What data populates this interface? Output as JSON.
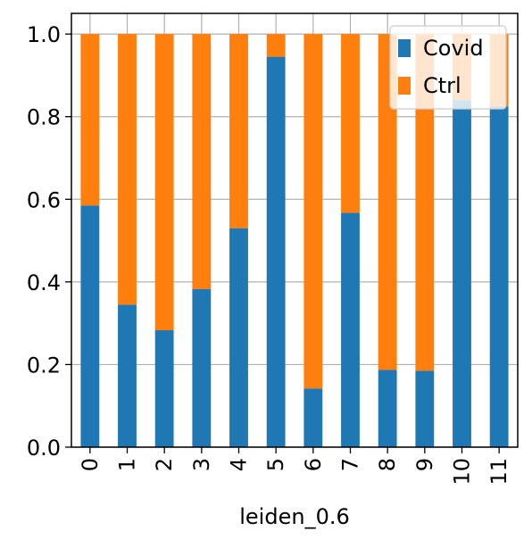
{
  "chart_data": {
    "type": "bar",
    "stacked": true,
    "categories": [
      "0",
      "1",
      "2",
      "3",
      "4",
      "5",
      "6",
      "7",
      "8",
      "9",
      "10",
      "11"
    ],
    "series": [
      {
        "name": "Covid",
        "color": "#1f77b4",
        "values": [
          0.585,
          0.345,
          0.283,
          0.383,
          0.53,
          0.945,
          0.142,
          0.567,
          0.187,
          0.185,
          0.84,
          0.825
        ]
      },
      {
        "name": "Ctrl",
        "color": "#ff7f0e",
        "values": [
          0.415,
          0.655,
          0.717,
          0.617,
          0.47,
          0.055,
          0.858,
          0.433,
          0.813,
          0.815,
          0.16,
          0.175
        ]
      }
    ],
    "xlabel": "leiden_0.6",
    "ylabel": "",
    "ylim": [
      0,
      1.05
    ],
    "yticks": [
      "0.0",
      "0.2",
      "0.4",
      "0.6",
      "0.8",
      "1.0"
    ],
    "grid": true,
    "legend_position": "top-right"
  }
}
